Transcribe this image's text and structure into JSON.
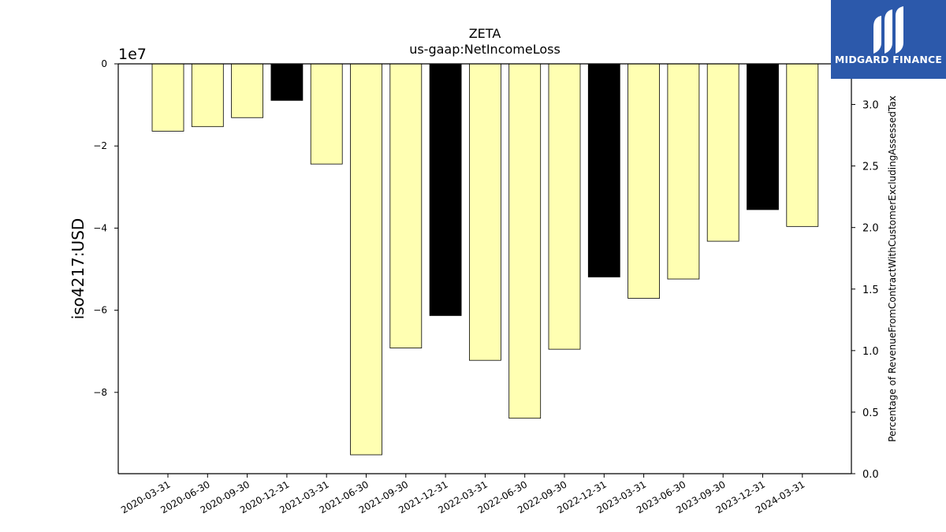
{
  "brand": {
    "name": "MIDGARD FINANCE",
    "bg_color": "#2c59ab"
  },
  "chart_data": {
    "type": "bar",
    "title": "ZETA",
    "subtitle": "us-gaap:NetIncomeLoss",
    "ylabel": "iso4217:USD",
    "y_offset_label": "1e7",
    "y2label": "Percentage of RevenueFromContractWithCustomerExcludingAssessedTax",
    "categories": [
      "2020-03-31",
      "2020-06-30",
      "2020-09-30",
      "2020-12-31",
      "2021-03-31",
      "2021-06-30",
      "2021-09-30",
      "2021-12-31",
      "2022-03-31",
      "2022-06-30",
      "2022-09-30",
      "2022-12-31",
      "2023-03-31",
      "2023-06-30",
      "2023-09-30",
      "2023-12-31",
      "2024-03-31"
    ],
    "values": [
      -16400000,
      -15300000,
      -13100000,
      -8900000,
      -24400000,
      -95200000,
      -69200000,
      -61300000,
      -72200000,
      -86300000,
      -69500000,
      -51900000,
      -57100000,
      -52400000,
      -43200000,
      -35500000,
      -39600000
    ],
    "bar_colors": [
      "#ffffb2",
      "#ffffb2",
      "#ffffb2",
      "#000000",
      "#ffffb2",
      "#ffffb2",
      "#ffffb2",
      "#000000",
      "#ffffb2",
      "#ffffb2",
      "#ffffb2",
      "#000000",
      "#ffffb2",
      "#ffffb2",
      "#ffffb2",
      "#000000",
      "#ffffb2"
    ],
    "ylim": [
      -99800000,
      0
    ],
    "yticks": [
      0,
      -20000000,
      -40000000,
      -60000000,
      -80000000
    ],
    "ytick_labels": [
      "0",
      "−2",
      "−4",
      "−6",
      "−8"
    ],
    "y2lim": [
      0,
      3.33
    ],
    "y2ticks": [
      0,
      0.5,
      1,
      1.5,
      2,
      2.5,
      3
    ],
    "y2tick_labels": [
      "0.0",
      "0.5",
      "1.0",
      "1.5",
      "2.0",
      "2.5",
      "3.0"
    ],
    "grid": false,
    "legend": "none"
  }
}
